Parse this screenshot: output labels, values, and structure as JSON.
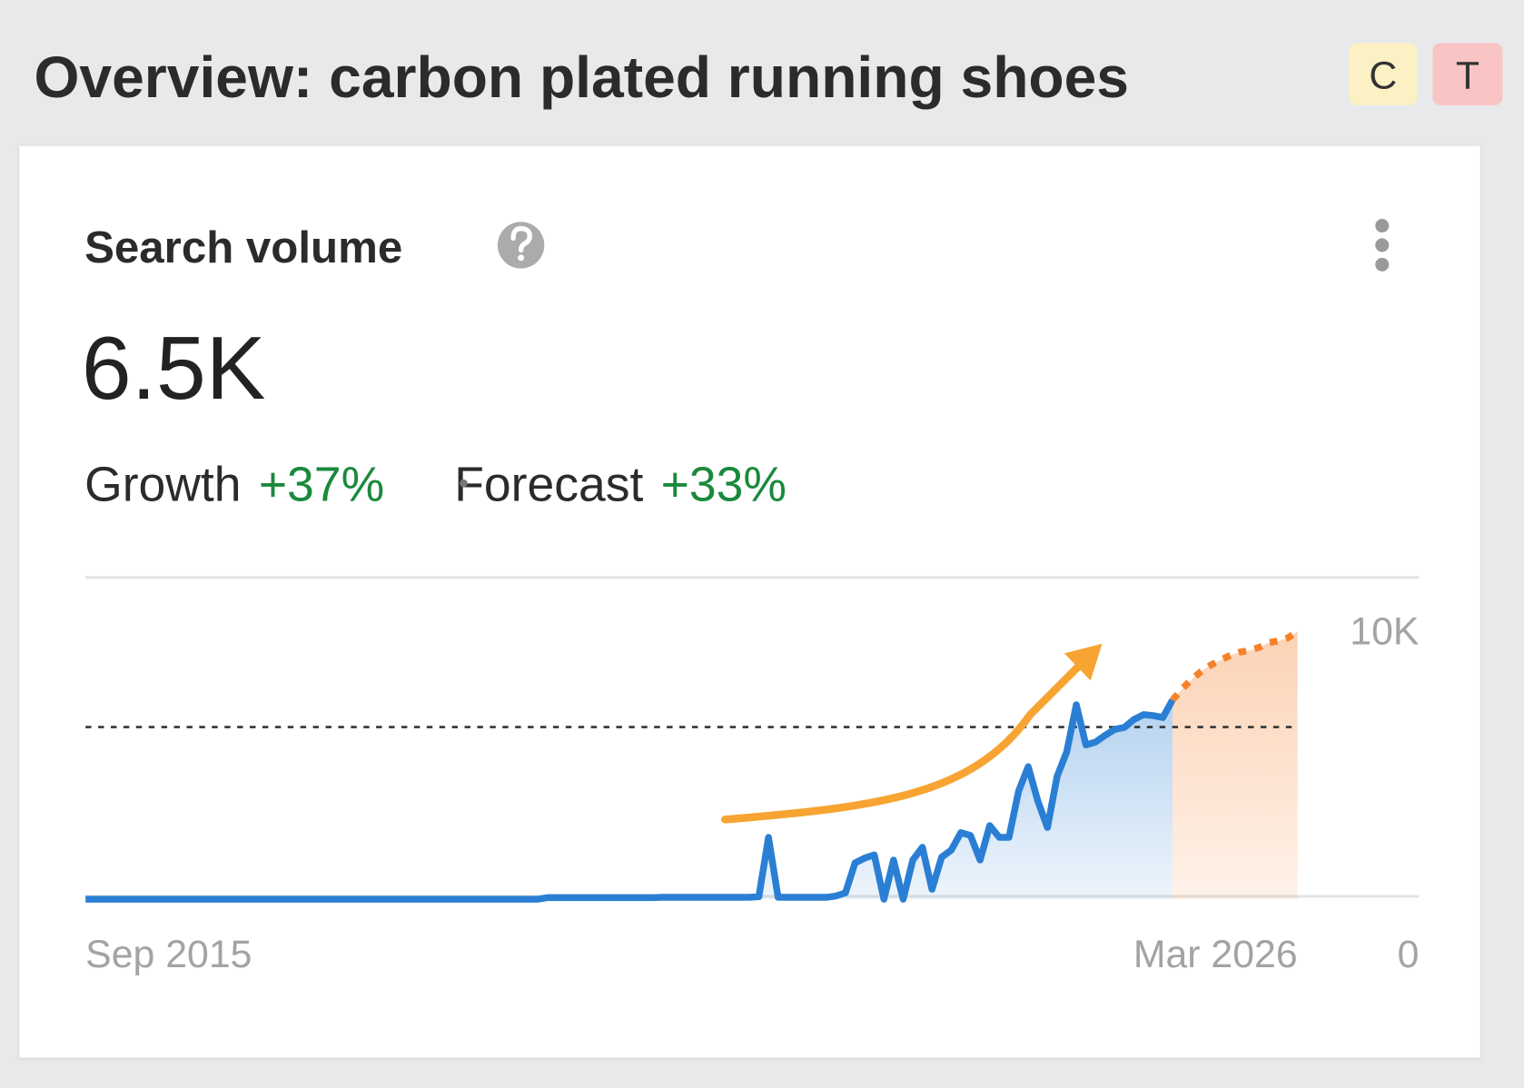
{
  "header": {
    "title": "Overview: carbon plated running shoes",
    "badges": [
      "C",
      "T"
    ]
  },
  "card": {
    "title": "Search volume",
    "value": "6.5K",
    "growth_label": "Growth",
    "growth": "+37%",
    "forecast_label": "Forecast",
    "forecast": "+33%"
  },
  "chart_data": {
    "type": "line",
    "categories": [
      "Sep 2015",
      null,
      null,
      null,
      null,
      null,
      null,
      null,
      null,
      null,
      null,
      null,
      null,
      null,
      null,
      null,
      null,
      null,
      null,
      null,
      null,
      null,
      null,
      null,
      null,
      null,
      null,
      null,
      null,
      null,
      null,
      null,
      null,
      null,
      null,
      null,
      null,
      null,
      null,
      null,
      null,
      null,
      null,
      null,
      null,
      null,
      null,
      null,
      null,
      null,
      null,
      null,
      null,
      null,
      null,
      null,
      null,
      null,
      null,
      null,
      null,
      null,
      null,
      null,
      null,
      null,
      null,
      null,
      null,
      null,
      null,
      null,
      null,
      null,
      null,
      null,
      null,
      null,
      null,
      null,
      null,
      null,
      null,
      null,
      null,
      null,
      null,
      null,
      null,
      null,
      null,
      null,
      null,
      null,
      null,
      null,
      null,
      null,
      null,
      null,
      null,
      null,
      null,
      null,
      null,
      null,
      null,
      null,
      null,
      null,
      null,
      null,
      null,
      null,
      null,
      null,
      null,
      null,
      null,
      null,
      null,
      null,
      null,
      null,
      null,
      null,
      "Mar 2026"
    ],
    "series": [
      {
        "color": "#2a7fd4",
        "area": "#2a7fd4",
        "dashed": false,
        "values": [
          0,
          0,
          0,
          0,
          0,
          0,
          0,
          0,
          0,
          0,
          0,
          0,
          0,
          0,
          0,
          0,
          0,
          0,
          0,
          0,
          0,
          0,
          0,
          0,
          0,
          0,
          0,
          0,
          0,
          0,
          0,
          0,
          0,
          0,
          0,
          0,
          0,
          0,
          0,
          0,
          0,
          0,
          0,
          0,
          0,
          0,
          0,
          0,
          50,
          50,
          50,
          50,
          50,
          50,
          50,
          50,
          50,
          50,
          50,
          50,
          60,
          60,
          60,
          60,
          60,
          60,
          60,
          60,
          60,
          60,
          80,
          1940,
          60,
          60,
          60,
          60,
          60,
          60,
          100,
          200,
          1140,
          1290,
          1390,
          0,
          1230,
          0,
          1230,
          1630,
          310,
          1320,
          1540,
          2090,
          2000,
          1230,
          2310,
          1940,
          1940,
          3390,
          4160,
          3080,
          2250,
          3850,
          4620,
          6100,
          4840,
          4930,
          5140,
          5330,
          5390,
          5640,
          5790,
          5760,
          5700,
          6250,
          null,
          null,
          null,
          null,
          null,
          null,
          null,
          null,
          null,
          null,
          null,
          null,
          null
        ]
      },
      {
        "color": "#f5822a",
        "area": "#f9a66b",
        "dashed": true,
        "values": [
          null,
          null,
          null,
          null,
          null,
          null,
          null,
          null,
          null,
          null,
          null,
          null,
          null,
          null,
          null,
          null,
          null,
          null,
          null,
          null,
          null,
          null,
          null,
          null,
          null,
          null,
          null,
          null,
          null,
          null,
          null,
          null,
          null,
          null,
          null,
          null,
          null,
          null,
          null,
          null,
          null,
          null,
          null,
          null,
          null,
          null,
          null,
          null,
          null,
          null,
          null,
          null,
          null,
          null,
          null,
          null,
          null,
          null,
          null,
          null,
          null,
          null,
          null,
          null,
          null,
          null,
          null,
          null,
          null,
          null,
          null,
          null,
          null,
          null,
          null,
          null,
          null,
          null,
          null,
          null,
          null,
          null,
          null,
          null,
          null,
          null,
          null,
          null,
          null,
          null,
          null,
          null,
          null,
          null,
          null,
          null,
          null,
          null,
          null,
          null,
          null,
          null,
          null,
          null,
          null,
          null,
          null,
          null,
          null,
          null,
          null,
          null,
          null,
          6250,
          6600,
          6900,
          7150,
          7350,
          7500,
          7650,
          7750,
          7800,
          7900,
          8050,
          8100,
          8200,
          8400
        ]
      }
    ],
    "hline": 5400,
    "ylim": [
      0,
      10000
    ],
    "yticks": [
      0,
      {
        "value": 10000,
        "label": "10K"
      }
    ],
    "grid": true
  }
}
